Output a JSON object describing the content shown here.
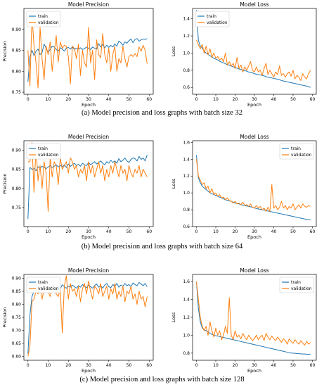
{
  "chart_data": [
    {
      "type": "line",
      "title": "Model Precision",
      "xlabel": "Epoch",
      "ylabel": "Precision",
      "xlim": [
        -2,
        62
      ],
      "ylim": [
        0.745,
        0.95
      ],
      "xticks": [
        0,
        10,
        20,
        30,
        40,
        50,
        60
      ],
      "yticks": [
        0.75,
        0.8,
        0.85,
        0.9
      ],
      "ytick_labels": [
        "0.75",
        "0.80",
        "0.85",
        "0.90"
      ],
      "legend": "top-left",
      "series": [
        {
          "name": "train",
          "color": "#1f77b4",
          "values": [
            0.775,
            0.835,
            0.85,
            0.838,
            0.848,
            0.853,
            0.84,
            0.845,
            0.865,
            0.855,
            0.845,
            0.852,
            0.86,
            0.858,
            0.852,
            0.848,
            0.856,
            0.853,
            0.848,
            0.855,
            0.857,
            0.853,
            0.858,
            0.852,
            0.855,
            0.853,
            0.856,
            0.852,
            0.854,
            0.858,
            0.855,
            0.852,
            0.858,
            0.855,
            0.853,
            0.866,
            0.858,
            0.864,
            0.856,
            0.862,
            0.857,
            0.862,
            0.858,
            0.865,
            0.86,
            0.872,
            0.868,
            0.862,
            0.87,
            0.867,
            0.873,
            0.877,
            0.868,
            0.876,
            0.878,
            0.872,
            0.875,
            0.877,
            0.876,
            0.878
          ]
        },
        {
          "name": "validation",
          "color": "#ff7f0e",
          "values": [
            0.85,
            0.765,
            0.935,
            0.86,
            0.82,
            0.76,
            0.905,
            0.83,
            0.78,
            0.86,
            0.84,
            0.87,
            0.8,
            0.845,
            0.885,
            0.822,
            0.87,
            0.855,
            0.862,
            0.86,
            0.835,
            0.77,
            0.86,
            0.855,
            0.83,
            0.865,
            0.79,
            0.85,
            0.82,
            0.81,
            0.905,
            0.82,
            0.85,
            0.78,
            0.875,
            0.84,
            0.832,
            0.89,
            0.84,
            0.82,
            0.855,
            0.8,
            0.84,
            0.86,
            0.8,
            0.83,
            0.82,
            0.86,
            0.83,
            0.81,
            0.835,
            0.84,
            0.835,
            0.842,
            0.835,
            0.858,
            0.848,
            0.862,
            0.85,
            0.818
          ]
        }
      ]
    },
    {
      "type": "line",
      "title": "Model Loss",
      "xlabel": "Epoch",
      "ylabel": "Loss",
      "xlim": [
        -2,
        62
      ],
      "ylim": [
        0.52,
        1.52
      ],
      "xticks": [
        0,
        10,
        20,
        30,
        40,
        50,
        60
      ],
      "yticks": [
        0.6,
        0.8,
        1.0,
        1.2,
        1.4
      ],
      "ytick_labels": [
        "0.6",
        "0.8",
        "1.0",
        "1.2",
        "1.4"
      ],
      "legend": "top-left",
      "series": [
        {
          "name": "train",
          "color": "#1f77b4",
          "values": [
            1.5,
            1.15,
            1.08,
            1.06,
            1.02,
            1.0,
            0.985,
            0.97,
            0.955,
            0.94,
            0.93,
            0.92,
            0.905,
            0.895,
            0.885,
            0.875,
            0.865,
            0.86,
            0.85,
            0.84,
            0.83,
            0.825,
            0.815,
            0.81,
            0.8,
            0.795,
            0.79,
            0.78,
            0.775,
            0.77,
            0.76,
            0.755,
            0.75,
            0.745,
            0.74,
            0.735,
            0.725,
            0.72,
            0.715,
            0.71,
            0.705,
            0.7,
            0.695,
            0.69,
            0.68,
            0.675,
            0.67,
            0.665,
            0.66,
            0.655,
            0.65,
            0.645,
            0.64,
            0.635,
            0.63,
            0.625,
            0.62,
            0.615,
            0.61,
            0.6
          ]
        },
        {
          "name": "validation",
          "color": "#ff7f0e",
          "values": [
            1.15,
            1.1,
            1.05,
            1.1,
            1.0,
            1.08,
            0.98,
            1.05,
            0.95,
            1.0,
            0.94,
            0.96,
            0.92,
            0.94,
            0.9,
            1.0,
            0.86,
            0.9,
            0.85,
            0.88,
            0.82,
            0.95,
            0.82,
            0.86,
            0.78,
            0.84,
            0.8,
            0.85,
            0.9,
            0.8,
            0.78,
            0.84,
            0.78,
            0.8,
            0.74,
            0.82,
            0.88,
            0.75,
            0.8,
            0.76,
            0.72,
            0.78,
            0.75,
            0.85,
            0.74,
            0.76,
            0.72,
            0.76,
            0.78,
            0.73,
            0.8,
            0.7,
            0.74,
            0.72,
            0.68,
            0.76,
            0.72,
            0.7,
            0.76,
            0.8
          ]
        }
      ]
    },
    {
      "type": "line",
      "title": "Model Precision",
      "xlabel": "Epoch",
      "ylabel": "Precision",
      "xlim": [
        -2,
        62
      ],
      "ylim": [
        0.7,
        0.925
      ],
      "xticks": [
        0,
        10,
        20,
        30,
        40,
        50,
        60
      ],
      "yticks": [
        0.75,
        0.8,
        0.85,
        0.9
      ],
      "ytick_labels": [
        "0.75",
        "0.80",
        "0.85",
        "0.90"
      ],
      "legend": "top-left",
      "series": [
        {
          "name": "train",
          "color": "#1f77b4",
          "values": [
            0.72,
            0.855,
            0.85,
            0.852,
            0.846,
            0.857,
            0.853,
            0.858,
            0.855,
            0.852,
            0.856,
            0.86,
            0.855,
            0.858,
            0.862,
            0.856,
            0.86,
            0.857,
            0.862,
            0.855,
            0.864,
            0.858,
            0.862,
            0.866,
            0.86,
            0.863,
            0.858,
            0.866,
            0.862,
            0.86,
            0.868,
            0.862,
            0.866,
            0.87,
            0.864,
            0.868,
            0.872,
            0.866,
            0.862,
            0.87,
            0.866,
            0.874,
            0.868,
            0.872,
            0.866,
            0.878,
            0.87,
            0.874,
            0.88,
            0.872,
            0.868,
            0.876,
            0.88,
            0.878,
            0.872,
            0.884,
            0.876,
            0.88,
            0.872,
            0.888
          ]
        },
        {
          "name": "validation",
          "color": "#ff7f0e",
          "values": [
            0.87,
            0.87,
            0.92,
            0.79,
            0.91,
            0.82,
            0.86,
            0.8,
            0.87,
            0.84,
            0.74,
            0.88,
            0.83,
            0.87,
            0.86,
            0.81,
            0.88,
            0.85,
            0.86,
            0.87,
            0.84,
            0.88,
            0.87,
            0.85,
            0.86,
            0.83,
            0.85,
            0.84,
            0.86,
            0.82,
            0.87,
            0.84,
            0.86,
            0.83,
            0.85,
            0.87,
            0.84,
            0.86,
            0.82,
            0.85,
            0.83,
            0.86,
            0.84,
            0.87,
            0.85,
            0.83,
            0.86,
            0.84,
            0.85,
            0.82,
            0.86,
            0.84,
            0.83,
            0.85,
            0.84,
            0.86,
            0.83,
            0.85,
            0.84,
            0.83
          ]
        }
      ]
    },
    {
      "type": "line",
      "title": "Model Loss",
      "xlabel": "Epoch",
      "ylabel": "Loss",
      "xlim": [
        -2,
        62
      ],
      "ylim": [
        0.6,
        1.62
      ],
      "xticks": [
        0,
        10,
        20,
        30,
        40,
        50,
        60
      ],
      "yticks": [
        0.6,
        0.8,
        1.0,
        1.2,
        1.4,
        1.6
      ],
      "ytick_labels": [
        "0.6",
        "0.8",
        "1.0",
        "1.2",
        "1.4",
        "1.6"
      ],
      "legend": "top-right",
      "series": [
        {
          "name": "train",
          "color": "#1f77b4",
          "values": [
            1.45,
            1.18,
            1.12,
            1.08,
            1.06,
            1.04,
            1.02,
            1.0,
            0.99,
            0.98,
            0.97,
            0.96,
            0.95,
            0.94,
            0.93,
            0.92,
            0.91,
            0.905,
            0.9,
            0.89,
            0.88,
            0.875,
            0.87,
            0.86,
            0.855,
            0.85,
            0.845,
            0.84,
            0.835,
            0.83,
            0.82,
            0.815,
            0.81,
            0.805,
            0.8,
            0.795,
            0.79,
            0.785,
            0.78,
            0.775,
            0.77,
            0.765,
            0.76,
            0.755,
            0.75,
            0.745,
            0.74,
            0.735,
            0.73,
            0.725,
            0.72,
            0.715,
            0.71,
            0.705,
            0.7,
            0.695,
            0.69,
            0.685,
            0.68,
            0.68
          ]
        },
        {
          "name": "validation",
          "color": "#ff7f0e",
          "values": [
            1.4,
            1.2,
            1.15,
            1.1,
            1.12,
            1.05,
            1.08,
            1.0,
            1.05,
            0.98,
            1.0,
            0.96,
            0.98,
            0.94,
            0.95,
            0.92,
            0.94,
            0.91,
            0.9,
            0.88,
            0.9,
            0.87,
            0.88,
            0.86,
            0.89,
            0.85,
            0.86,
            0.84,
            0.87,
            0.83,
            0.82,
            0.85,
            0.82,
            0.84,
            0.8,
            0.82,
            0.78,
            0.83,
            0.78,
            1.1,
            0.82,
            0.85,
            0.8,
            0.83,
            0.9,
            0.82,
            0.85,
            0.8,
            0.84,
            0.82,
            0.87,
            0.8,
            0.83,
            0.86,
            0.82,
            0.87,
            0.84,
            0.83,
            0.85,
            0.84
          ]
        }
      ]
    },
    {
      "type": "line",
      "title": "Model Precision",
      "xlabel": "Epoch",
      "ylabel": "Precision",
      "xlim": [
        -2,
        62
      ],
      "ylim": [
        0.585,
        0.915
      ],
      "xticks": [
        0,
        10,
        20,
        30,
        40,
        50,
        60
      ],
      "yticks": [
        0.6,
        0.65,
        0.7,
        0.75,
        0.8,
        0.85,
        0.9
      ],
      "ytick_labels": [
        "0.60",
        "0.65",
        "0.70",
        "0.75",
        "0.80",
        "0.85",
        "0.90"
      ],
      "legend": "top-left",
      "series": [
        {
          "name": "train",
          "color": "#1f77b4",
          "values": [
            0.61,
            0.76,
            0.83,
            0.85,
            0.855,
            0.86,
            0.845,
            0.87,
            0.855,
            0.865,
            0.86,
            0.87,
            0.865,
            0.858,
            0.872,
            0.866,
            0.86,
            0.875,
            0.868,
            0.862,
            0.87,
            0.866,
            0.874,
            0.868,
            0.862,
            0.872,
            0.866,
            0.876,
            0.87,
            0.864,
            0.874,
            0.868,
            0.862,
            0.872,
            0.878,
            0.866,
            0.872,
            0.862,
            0.874,
            0.88,
            0.868,
            0.864,
            0.876,
            0.87,
            0.88,
            0.866,
            0.874,
            0.87,
            0.88,
            0.872,
            0.876,
            0.868,
            0.882,
            0.876,
            0.872,
            0.884,
            0.878,
            0.872,
            0.88,
            0.868
          ]
        },
        {
          "name": "validation",
          "color": "#ff7f0e",
          "values": [
            0.6,
            0.64,
            0.81,
            0.82,
            0.85,
            0.84,
            0.87,
            0.82,
            0.86,
            0.89,
            0.85,
            0.83,
            0.87,
            0.88,
            0.84,
            0.83,
            0.86,
            0.69,
            0.87,
            0.91,
            0.82,
            0.88,
            0.85,
            0.86,
            0.83,
            0.87,
            0.81,
            0.86,
            0.88,
            0.84,
            0.89,
            0.85,
            0.82,
            0.87,
            0.86,
            0.84,
            0.88,
            0.83,
            0.85,
            0.87,
            0.82,
            0.86,
            0.84,
            0.88,
            0.82,
            0.85,
            0.83,
            0.87,
            0.81,
            0.85,
            0.84,
            0.87,
            0.82,
            0.84,
            0.8,
            0.85,
            0.82,
            0.83,
            0.79,
            0.83
          ]
        }
      ]
    },
    {
      "type": "line",
      "title": "Model Loss",
      "xlabel": "Epoch",
      "ylabel": "Loss",
      "xlim": [
        -2,
        62
      ],
      "ylim": [
        0.72,
        1.68
      ],
      "xticks": [
        0,
        10,
        20,
        30,
        40,
        50,
        60
      ],
      "yticks": [
        0.8,
        1.0,
        1.2,
        1.4,
        1.6
      ],
      "ytick_labels": [
        "0.8",
        "1.0",
        "1.2",
        "1.4",
        "1.6"
      ],
      "legend": "top-right",
      "series": [
        {
          "name": "train",
          "color": "#1f77b4",
          "values": [
            1.6,
            1.3,
            1.15,
            1.08,
            1.06,
            1.05,
            1.04,
            1.02,
            1.01,
            1.0,
            0.995,
            0.99,
            0.985,
            0.98,
            0.975,
            0.97,
            0.965,
            0.96,
            0.955,
            0.95,
            0.945,
            0.94,
            0.935,
            0.93,
            0.925,
            0.92,
            0.915,
            0.91,
            0.905,
            0.9,
            0.895,
            0.89,
            0.885,
            0.88,
            0.875,
            0.87,
            0.865,
            0.86,
            0.855,
            0.85,
            0.845,
            0.84,
            0.835,
            0.83,
            0.825,
            0.82,
            0.815,
            0.81,
            0.805,
            0.8,
            0.8,
            0.798,
            0.796,
            0.794,
            0.792,
            0.79,
            0.79,
            0.788,
            0.786,
            0.79
          ]
        },
        {
          "name": "validation",
          "color": "#ff7f0e",
          "values": [
            1.6,
            1.4,
            1.2,
            1.1,
            1.05,
            1.1,
            1.0,
            1.15,
            1.05,
            0.98,
            1.08,
            1.0,
            1.05,
            0.95,
            1.0,
            1.1,
            1.02,
            1.42,
            1.0,
            0.95,
            1.05,
            0.98,
            1.0,
            0.96,
            1.02,
            0.98,
            0.95,
            1.0,
            0.97,
            0.94,
            0.96,
            1.0,
            0.95,
            0.98,
            1.0,
            0.94,
            1.02,
            0.98,
            0.95,
            0.99,
            0.96,
            0.94,
            0.98,
            0.95,
            0.92,
            0.96,
            0.94,
            0.9,
            0.96,
            0.93,
            0.91,
            0.95,
            0.92,
            0.9,
            0.94,
            0.91,
            0.89,
            0.93,
            0.9,
            0.92
          ]
        }
      ]
    }
  ],
  "captions": [
    "(a) Model precision and loss graphs with batch size 32",
    "(b) Model precision and loss graphs with batch size 64",
    "(c) Model precision and loss graphs with batch size 128"
  ]
}
